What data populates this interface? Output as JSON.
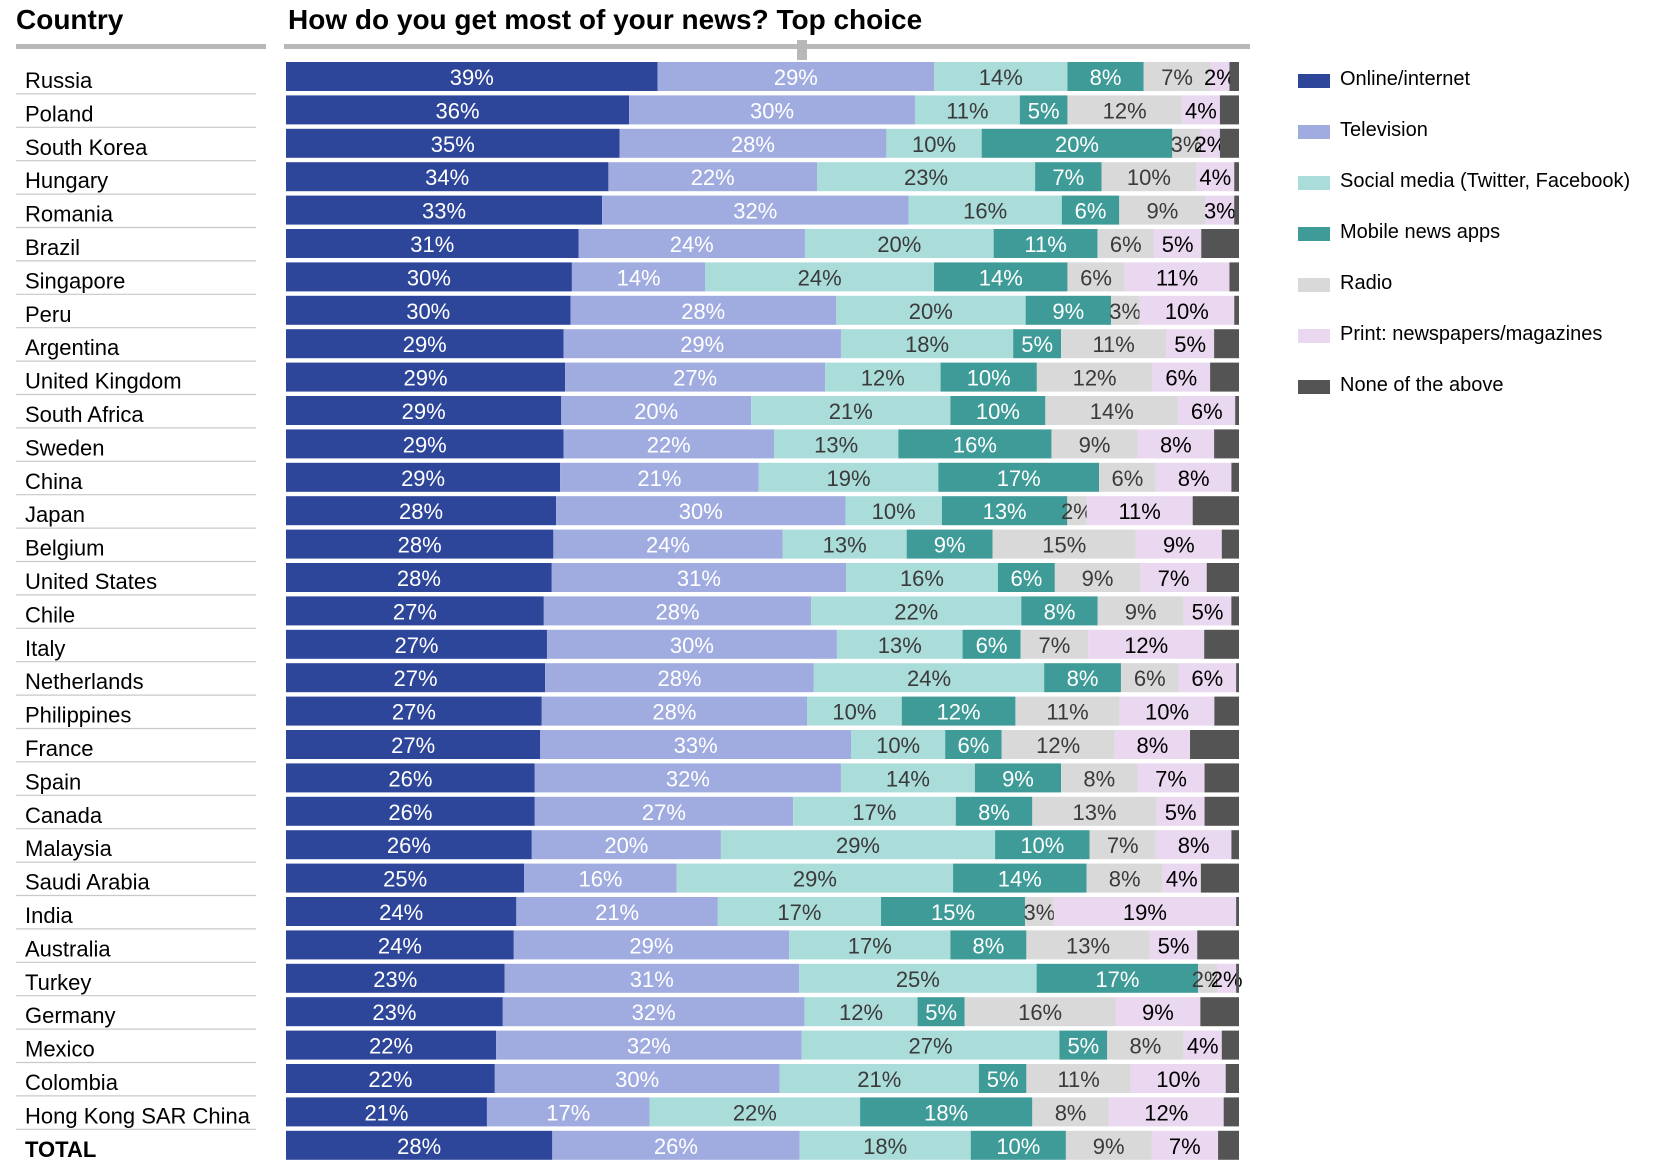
{
  "header": {
    "country_title": "Country",
    "chart_title": "How do you get most of your news?  Top choice"
  },
  "colors": {
    "online": "#2e469a",
    "television": "#a0ace0",
    "social": "#aadcda",
    "mobile": "#3f9b97",
    "radio": "#d9d9d9",
    "print": "#ead7f0",
    "none": "#545454",
    "row_divider": "#c8c8c8"
  },
  "chart_data": {
    "type": "bar",
    "orientation": "horizontal",
    "stacked": true,
    "xlim": [
      0,
      100
    ],
    "title": "How do you get most of your news?  Top choice",
    "row_header": "Country",
    "legend_position": "right",
    "categories": [
      "Russia",
      "Poland",
      "South Korea",
      "Hungary",
      "Romania",
      "Brazil",
      "Singapore",
      "Peru",
      "Argentina",
      "United Kingdom",
      "South Africa",
      "Sweden",
      "China",
      "Japan",
      "Belgium",
      "United States",
      "Chile",
      "Italy",
      "Netherlands",
      "Philippines",
      "France",
      "Spain",
      "Canada",
      "Malaysia",
      "Saudi Arabia",
      "India",
      "Australia",
      "Turkey",
      "Germany",
      "Mexico",
      "Colombia",
      "Hong Kong SAR China",
      "TOTAL"
    ],
    "series": [
      {
        "name": "Online/internet",
        "color_key": "online",
        "label_color": "#ffffff",
        "values": [
          39,
          36,
          35,
          34,
          33,
          31,
          30,
          30,
          29,
          29,
          29,
          29,
          29,
          28,
          28,
          28,
          27,
          27,
          27,
          27,
          27,
          26,
          26,
          26,
          25,
          24,
          24,
          23,
          23,
          22,
          22,
          21,
          28
        ]
      },
      {
        "name": "Television",
        "color_key": "television",
        "label_color": "#ffffff",
        "values": [
          29,
          30,
          28,
          22,
          32,
          24,
          14,
          28,
          29,
          27,
          20,
          22,
          21,
          30,
          24,
          31,
          28,
          30,
          28,
          28,
          33,
          32,
          27,
          20,
          16,
          21,
          29,
          31,
          32,
          32,
          30,
          17,
          26
        ]
      },
      {
        "name": "Social media (Twitter, Facebook)",
        "color_key": "social",
        "label_color": "#3a3a3a",
        "values": [
          14,
          11,
          10,
          23,
          16,
          20,
          24,
          20,
          18,
          12,
          21,
          13,
          19,
          10,
          13,
          16,
          22,
          13,
          24,
          10,
          10,
          14,
          17,
          29,
          29,
          17,
          17,
          25,
          12,
          27,
          21,
          22,
          18
        ]
      },
      {
        "name": "Mobile news apps",
        "color_key": "mobile",
        "label_color": "#ffffff",
        "values": [
          8,
          5,
          20,
          7,
          6,
          11,
          14,
          9,
          5,
          10,
          10,
          16,
          17,
          13,
          9,
          6,
          8,
          6,
          8,
          12,
          6,
          9,
          8,
          10,
          14,
          15,
          8,
          17,
          5,
          5,
          5,
          18,
          10
        ]
      },
      {
        "name": "Radio",
        "color_key": "radio",
        "label_color": "#3a3a3a",
        "values": [
          7,
          12,
          3,
          10,
          9,
          6,
          6,
          3,
          11,
          12,
          14,
          9,
          6,
          2,
          15,
          9,
          9,
          7,
          6,
          11,
          12,
          8,
          13,
          7,
          8,
          3,
          13,
          2,
          16,
          8,
          11,
          8,
          9
        ]
      },
      {
        "name": "Print: newspapers/magazines",
        "color_key": "print",
        "label_color": "#000000",
        "values": [
          2,
          4,
          2,
          4,
          3,
          5,
          11,
          10,
          5,
          6,
          6,
          8,
          8,
          11,
          9,
          7,
          5,
          12,
          6,
          10,
          8,
          7,
          5,
          8,
          4,
          19,
          5,
          2,
          9,
          4,
          10,
          12,
          7
        ]
      },
      {
        "name": "None of the above",
        "color_key": "none",
        "label_color": "#ffffff",
        "values": [
          1,
          2,
          2,
          0.5,
          0.5,
          4,
          1,
          0.5,
          2.6,
          3,
          0.4,
          2.6,
          0.8,
          4.8,
          1.8,
          3.4,
          0.8,
          3.6,
          0.3,
          2.6,
          5.2,
          3.6,
          3.6,
          0.8,
          4,
          0.3,
          4.4,
          0.3,
          4.1,
          1.8,
          1.4,
          1.6,
          2.2
        ]
      }
    ]
  }
}
